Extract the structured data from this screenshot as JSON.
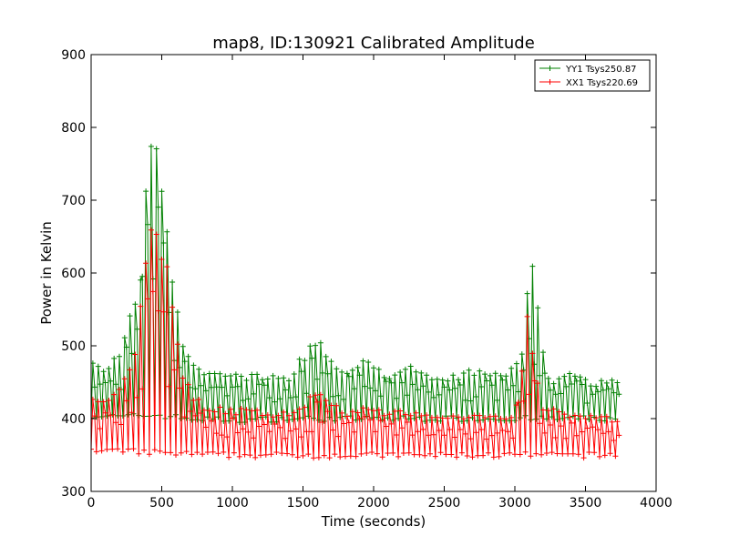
{
  "chart_data": {
    "type": "line",
    "title": "map8, ID:130921 Calibrated Amplitude",
    "xlabel": "Time (seconds)",
    "ylabel": "Power in Kelvin",
    "xlim": [
      0,
      4000
    ],
    "ylim": [
      300,
      900
    ],
    "xticks": [
      "0",
      "500",
      "1000",
      "1500",
      "2000",
      "2500",
      "3000",
      "3500",
      "4000"
    ],
    "yticks": [
      "300",
      "400",
      "500",
      "600",
      "700",
      "800",
      "900"
    ],
    "grid": false,
    "legend_position": "top-right",
    "marker": "plus",
    "sample_interval_s": 12.5,
    "x_end": 3740,
    "series": [
      {
        "name": "YY1 Tsys250.87",
        "color": "#008000",
        "baseline_points": [
          [
            0,
            405
          ],
          [
            200,
            402
          ],
          [
            450,
            405
          ],
          [
            700,
            400
          ],
          [
            1000,
            398
          ],
          [
            1500,
            400
          ],
          [
            2000,
            400
          ],
          [
            2500,
            400
          ],
          [
            3000,
            400
          ],
          [
            3740,
            400
          ]
        ],
        "peak_envelope": [
          [
            0,
            490
          ],
          [
            100,
            470
          ],
          [
            200,
            495
          ],
          [
            300,
            560
          ],
          [
            350,
            620
          ],
          [
            400,
            765
          ],
          [
            450,
            800
          ],
          [
            500,
            750
          ],
          [
            550,
            640
          ],
          [
            600,
            560
          ],
          [
            650,
            510
          ],
          [
            700,
            480
          ],
          [
            800,
            470
          ],
          [
            1000,
            462
          ],
          [
            1200,
            462
          ],
          [
            1400,
            460
          ],
          [
            1470,
            480
          ],
          [
            1520,
            495
          ],
          [
            1600,
            515
          ],
          [
            1700,
            485
          ],
          [
            1800,
            470
          ],
          [
            1900,
            480
          ],
          [
            1960,
            485
          ],
          [
            2100,
            462
          ],
          [
            2250,
            475
          ],
          [
            2400,
            460
          ],
          [
            2600,
            460
          ],
          [
            2700,
            470
          ],
          [
            2800,
            465
          ],
          [
            2950,
            468
          ],
          [
            3040,
            480
          ],
          [
            3070,
            530
          ],
          [
            3100,
            605
          ],
          [
            3140,
            612
          ],
          [
            3170,
            535
          ],
          [
            3250,
            450
          ],
          [
            3400,
            470
          ],
          [
            3550,
            450
          ],
          [
            3700,
            460
          ],
          [
            3740,
            455
          ]
        ]
      },
      {
        "name": "XX1 Tsys220.69",
        "color": "#ff0000",
        "baseline_points": [
          [
            0,
            355
          ],
          [
            300,
            355
          ],
          [
            600,
            352
          ],
          [
            1000,
            350
          ],
          [
            1500,
            350
          ],
          [
            2000,
            350
          ],
          [
            2500,
            350
          ],
          [
            3000,
            350
          ],
          [
            3500,
            350
          ],
          [
            3740,
            350
          ]
        ],
        "peak_envelope": [
          [
            0,
            430
          ],
          [
            100,
            425
          ],
          [
            200,
            440
          ],
          [
            300,
            480
          ],
          [
            350,
            575
          ],
          [
            400,
            660
          ],
          [
            450,
            690
          ],
          [
            500,
            650
          ],
          [
            550,
            600
          ],
          [
            600,
            520
          ],
          [
            650,
            470
          ],
          [
            700,
            440
          ],
          [
            800,
            420
          ],
          [
            1000,
            415
          ],
          [
            1200,
            412
          ],
          [
            1400,
            410
          ],
          [
            1500,
            415
          ],
          [
            1600,
            448
          ],
          [
            1700,
            430
          ],
          [
            1800,
            410
          ],
          [
            1950,
            422
          ],
          [
            2100,
            410
          ],
          [
            2300,
            412
          ],
          [
            2500,
            405
          ],
          [
            2700,
            405
          ],
          [
            2900,
            405
          ],
          [
            3000,
            408
          ],
          [
            3060,
            500
          ],
          [
            3100,
            560
          ],
          [
            3140,
            480
          ],
          [
            3200,
            420
          ],
          [
            3400,
            410
          ],
          [
            3600,
            405
          ],
          [
            3740,
            400
          ]
        ]
      }
    ]
  }
}
